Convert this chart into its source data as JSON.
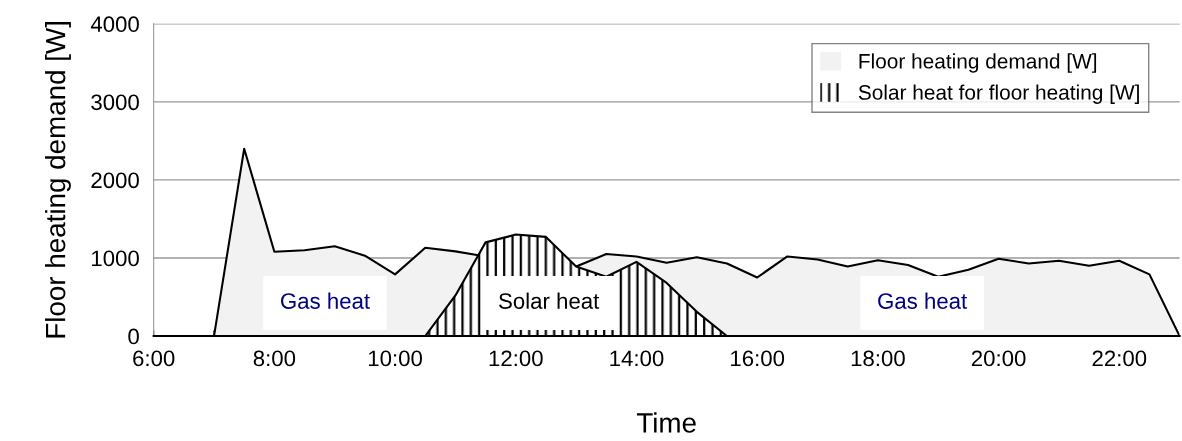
{
  "chart_data": {
    "type": "area",
    "xlabel": "Time",
    "ylabel": "Floor heating demand [W]",
    "series": [
      {
        "name": "Floor heating demand [W]",
        "color": "#f2f2f2",
        "x": [
          6,
          6.5,
          7,
          7.5,
          8,
          8.5,
          9,
          9.5,
          10,
          10.5,
          11,
          11.5,
          12,
          12.5,
          13,
          13.5,
          14,
          14.5,
          15,
          15.5,
          16,
          16.5,
          17,
          17.5,
          18,
          18.5,
          19,
          19.5,
          20,
          20.5,
          21,
          21.5,
          22,
          22.5,
          23
        ],
        "values": [
          0,
          0,
          0,
          2400,
          1080,
          1100,
          1150,
          1030,
          790,
          1130,
          1085,
          1020,
          null,
          null,
          890,
          1050,
          1020,
          940,
          1010,
          930,
          750,
          1020,
          980,
          890,
          970,
          910,
          760,
          850,
          990,
          930,
          965,
          900,
          965,
          790,
          0
        ]
      },
      {
        "name": "Solar heat for floor heating [W]",
        "color": "#000000",
        "x": [
          10.5,
          11,
          11.5,
          12,
          12.5,
          13,
          13.5,
          14,
          14.5,
          15,
          15.5
        ],
        "values": [
          0,
          520,
          1200,
          1300,
          1270,
          890,
          760,
          950,
          680,
          310,
          0
        ]
      }
    ],
    "xlim": [
      6,
      23
    ],
    "xticks": [
      {
        "value": 6,
        "label": "6:00"
      },
      {
        "value": 7,
        "label": null
      },
      {
        "value": 8,
        "label": "8:00"
      },
      {
        "value": 9,
        "label": null
      },
      {
        "value": 10,
        "label": "10:00"
      },
      {
        "value": 11,
        "label": null
      },
      {
        "value": 12,
        "label": "12:00"
      },
      {
        "value": 13,
        "label": null
      },
      {
        "value": 14,
        "label": "14:00"
      },
      {
        "value": 15,
        "label": null
      },
      {
        "value": 16,
        "label": "16:00"
      },
      {
        "value": 17,
        "label": null
      },
      {
        "value": 18,
        "label": "18:00"
      },
      {
        "value": 19,
        "label": null
      },
      {
        "value": 20,
        "label": "20:00"
      },
      {
        "value": 21,
        "label": null
      },
      {
        "value": 22,
        "label": "22:00"
      }
    ],
    "ylim": [
      0,
      4000
    ],
    "yticks": [
      0,
      1000,
      2000,
      3000,
      4000
    ],
    "grid": "y",
    "legend": "top right",
    "annotations": [
      "Gas heat",
      "Solar heat",
      "Gas heat"
    ]
  }
}
